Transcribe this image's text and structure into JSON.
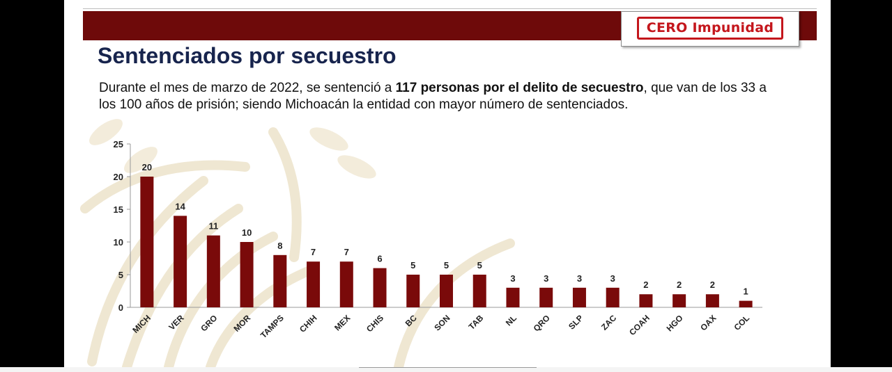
{
  "header": {
    "logo_text": "CERO Impunidad"
  },
  "slide": {
    "title": "Sentenciados por secuestro",
    "description_parts": [
      "Durante el mes de marzo de 2022, se sentenció a ",
      "117 personas por el delito de secuestro",
      ", que van de los 33 a los 100 años de prisión; siendo Michoacán la entidad con mayor número de sentenciados."
    ]
  },
  "colors": {
    "bar": "#7a0a0a",
    "header": "#6e0a0a",
    "title": "#17244d",
    "logo": "#c4161c"
  },
  "chart_data": {
    "type": "bar",
    "title": "",
    "xlabel": "",
    "ylabel": "",
    "ylim": [
      0,
      25
    ],
    "yticks": [
      0,
      5,
      10,
      15,
      20,
      25
    ],
    "grid": false,
    "categories": [
      "MICH",
      "VER",
      "GRO",
      "MOR",
      "TAMPS",
      "CHIH",
      "MEX",
      "CHIS",
      "BC",
      "SON",
      "TAB",
      "NL",
      "QRO",
      "SLP",
      "ZAC",
      "COAH",
      "HGO",
      "OAX",
      "COL"
    ],
    "values": [
      20,
      14,
      11,
      10,
      8,
      7,
      7,
      6,
      5,
      5,
      5,
      3,
      3,
      3,
      3,
      2,
      2,
      2,
      1
    ]
  }
}
